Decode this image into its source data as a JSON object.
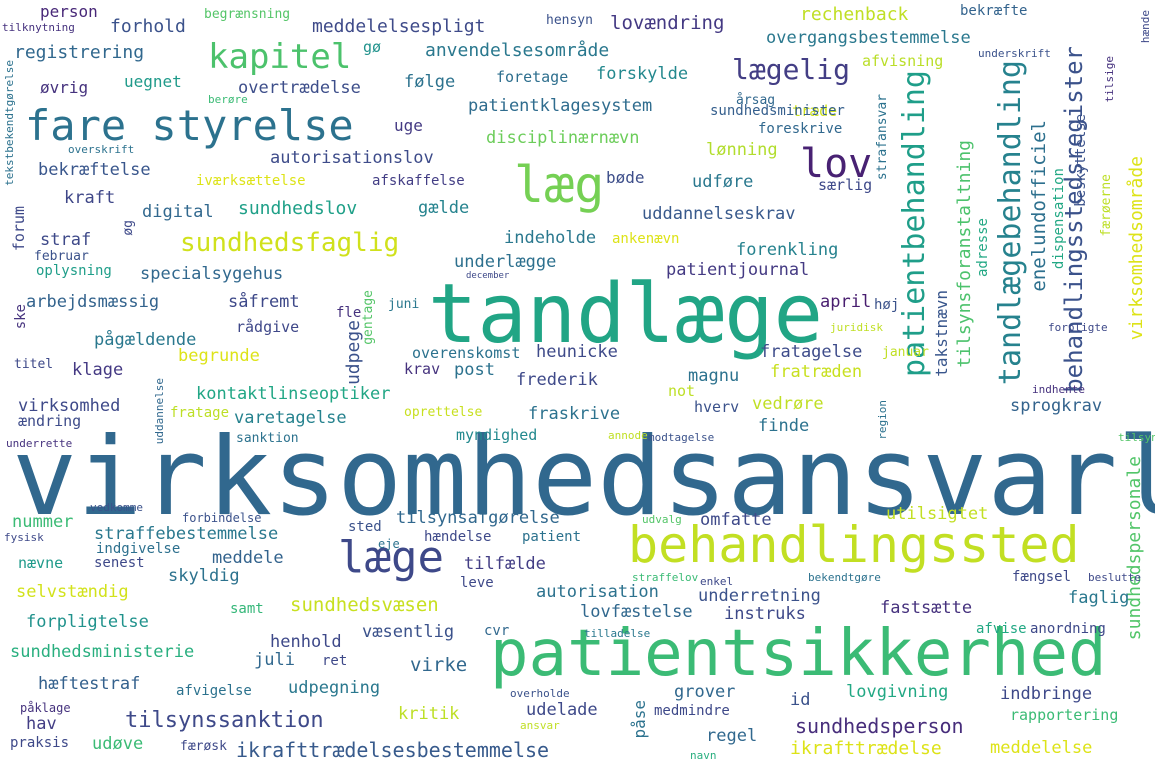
{
  "words": [
    {
      "text": "virksomhedsansvarlig",
      "color": "#31688e"
    },
    {
      "text": "tandlæge",
      "color": "#21a585"
    },
    {
      "text": "patientsikkerhed",
      "color": "#3bbb75"
    },
    {
      "text": "behandlingssted",
      "color": "#c2df23"
    },
    {
      "text": "fare styrelse",
      "color": "#2c728e"
    },
    {
      "text": "læg",
      "color": "#75d054"
    },
    {
      "text": "læge",
      "color": "#3e4989"
    },
    {
      "text": "lov",
      "color": "#482173"
    },
    {
      "text": "kapitel",
      "color": "#4cc26c"
    },
    {
      "text": "lægelig",
      "color": "#433e85"
    },
    {
      "text": "patientbehandling",
      "color": "#1f9e89"
    },
    {
      "text": "tandlægebehandling",
      "color": "#26828e"
    },
    {
      "text": "behandlingsstedsregister",
      "color": "#3b528b"
    },
    {
      "text": "sundhedsfaglig",
      "color": "#d0e11c"
    },
    {
      "text": "virksomhedsområde",
      "color": "#dde318"
    },
    {
      "text": "sundhedspersonale",
      "color": "#52c569"
    },
    {
      "text": "tilsynssanktion",
      "color": "#3e4989"
    },
    {
      "text": "ikrafttrædelsesbestemmelse",
      "color": "#375a8c"
    },
    {
      "text": "sundhedsperson",
      "color": "#472d7b"
    },
    {
      "text": "sundhedsvæsen",
      "color": "#c8e020"
    },
    {
      "text": "tilsynsforanstaltning",
      "color": "#4cc26c"
    },
    {
      "text": "enelundofficiel",
      "color": "#2d708e"
    },
    {
      "text": "takstnævn",
      "color": "#39568c"
    },
    {
      "text": "dispensation",
      "color": "#22a884"
    },
    {
      "text": "person",
      "color": "#482878"
    },
    {
      "text": "begrænsning",
      "color": "#54c568"
    },
    {
      "text": "meddelelsespligt",
      "color": "#3e4a89"
    },
    {
      "text": "rechenback",
      "color": "#c0df25"
    },
    {
      "text": "bekræfte",
      "color": "#33638d"
    },
    {
      "text": "forhold",
      "color": "#3b528b"
    },
    {
      "text": "lovændring",
      "color": "#443983"
    },
    {
      "text": "overgangsbestemmelse",
      "color": "#2a788e"
    },
    {
      "text": "registrering",
      "color": "#31688e"
    },
    {
      "text": "anvendelsesområde",
      "color": "#2a788e"
    },
    {
      "text": "gø",
      "color": "#20928c"
    },
    {
      "text": "uegnet",
      "color": "#1f9a8a"
    },
    {
      "text": "følge",
      "color": "#2c728e"
    },
    {
      "text": "forskylde",
      "color": "#23888e"
    },
    {
      "text": "øvrig",
      "color": "#46337e"
    },
    {
      "text": "overtrædelse",
      "color": "#3d4e8a"
    },
    {
      "text": "foretage",
      "color": "#2e6f8e"
    },
    {
      "text": "afvisning",
      "color": "#bade28"
    },
    {
      "text": "patientklagesystem",
      "color": "#2f6c8e"
    },
    {
      "text": "årsag",
      "color": "#31688e"
    },
    {
      "text": "træde",
      "color": "#cde11d"
    },
    {
      "text": "uge",
      "color": "#443a83"
    },
    {
      "text": "sundhedsminister",
      "color": "#355f8d"
    },
    {
      "text": "foreskrive",
      "color": "#31688e"
    },
    {
      "text": "disciplinærnævn",
      "color": "#6ccd5a"
    },
    {
      "text": "lønning",
      "color": "#b2dd2d"
    },
    {
      "text": "autorisationslov",
      "color": "#3e4c8a"
    },
    {
      "text": "bekræftelse",
      "color": "#39568c"
    },
    {
      "text": "iværksættelse",
      "color": "#dde318"
    },
    {
      "text": "afskaffelse",
      "color": "#433e85"
    },
    {
      "text": "bøde",
      "color": "#3d4e8a"
    },
    {
      "text": "udføre",
      "color": "#2a788e"
    },
    {
      "text": "særlig",
      "color": "#3e4989"
    },
    {
      "text": "kraft",
      "color": "#3f4788"
    },
    {
      "text": "digital",
      "color": "#31688e"
    },
    {
      "text": "sundhedslov",
      "color": "#1fa088"
    },
    {
      "text": "gælde",
      "color": "#25838e"
    },
    {
      "text": "uddannelseskrav",
      "color": "#38598c"
    },
    {
      "text": "indeholde",
      "color": "#2a788e"
    },
    {
      "text": "straf",
      "color": "#3e4989"
    },
    {
      "text": "forenkling",
      "color": "#26828e"
    },
    {
      "text": "underlægge",
      "color": "#2d708e"
    },
    {
      "text": "patientjournal",
      "color": "#443a83"
    },
    {
      "text": "specialsygehus",
      "color": "#31688e"
    },
    {
      "text": "oplysning",
      "color": "#1f9e89"
    },
    {
      "text": "februar",
      "color": "#3b528b"
    },
    {
      "text": "ankenævn",
      "color": "#dde318"
    },
    {
      "text": "arbejdsmæssig",
      "color": "#33638d"
    },
    {
      "text": "såfremt",
      "color": "#3e4989"
    },
    {
      "text": "april",
      "color": "#481d6f"
    },
    {
      "text": "høj",
      "color": "#3b528b"
    },
    {
      "text": "juni",
      "color": "#2a788e"
    },
    {
      "text": "fle",
      "color": "#46327e"
    },
    {
      "text": "udpege",
      "color": "#3b528b"
    },
    {
      "text": "pågældende",
      "color": "#2a788e"
    },
    {
      "text": "rådgive",
      "color": "#3f4889"
    },
    {
      "text": "begrunde",
      "color": "#dde318"
    },
    {
      "text": "heunicke",
      "color": "#3e4a89"
    },
    {
      "text": "magnu",
      "color": "#2c728e"
    },
    {
      "text": "fratagelse",
      "color": "#3e4c8a"
    },
    {
      "text": "overenskomst",
      "color": "#2c728e"
    },
    {
      "text": "klage",
      "color": "#443983"
    },
    {
      "text": "krav",
      "color": "#46337e"
    },
    {
      "text": "post",
      "color": "#2c728e"
    },
    {
      "text": "frederik",
      "color": "#3e4989"
    },
    {
      "text": "fratræden",
      "color": "#c8e020"
    },
    {
      "text": "kontaktlinseoptiker",
      "color": "#21a685"
    },
    {
      "text": "virksomhed",
      "color": "#3e4989"
    },
    {
      "text": "varetagelse",
      "color": "#26828e"
    },
    {
      "text": "fraskrive",
      "color": "#2c728e"
    },
    {
      "text": "hverv",
      "color": "#3b528b"
    },
    {
      "text": "vedrøre",
      "color": "#c0df25"
    },
    {
      "text": "sprogkrav",
      "color": "#33638d"
    },
    {
      "text": "ændring",
      "color": "#3e4c8a"
    },
    {
      "text": "fratage",
      "color": "#bddf26"
    },
    {
      "text": "oprettelse",
      "color": "#c8e020"
    },
    {
      "text": "finde",
      "color": "#2c728e"
    },
    {
      "text": "myndighed",
      "color": "#23898e"
    },
    {
      "text": "sanktion",
      "color": "#2c728e"
    },
    {
      "text": "underrette",
      "color": "#46327e"
    },
    {
      "text": "modtagelse",
      "color": "#3b528b"
    },
    {
      "text": "tilsyn",
      "color": "#54c568"
    },
    {
      "text": "nummer",
      "color": "#3bbb75"
    },
    {
      "text": "straffebestemmelse",
      "color": "#2a788e"
    },
    {
      "text": "tilsynsafgørelse",
      "color": "#31688e"
    },
    {
      "text": "omfatte",
      "color": "#3e4989"
    },
    {
      "text": "utilsigtet",
      "color": "#c2df23"
    },
    {
      "text": "forbindelse",
      "color": "#3b528b"
    },
    {
      "text": "sted",
      "color": "#3b528b"
    },
    {
      "text": "meddele",
      "color": "#33638d"
    },
    {
      "text": "hændelse",
      "color": "#3e4989"
    },
    {
      "text": "patient",
      "color": "#2c728e"
    },
    {
      "text": "indgivelse",
      "color": "#2d708e"
    },
    {
      "text": "nævne",
      "color": "#1f9a8a"
    },
    {
      "text": "senest",
      "color": "#3e4989"
    },
    {
      "text": "skyldig",
      "color": "#2c728e"
    },
    {
      "text": "tilfælde",
      "color": "#433e85"
    },
    {
      "text": "fængsel",
      "color": "#3e4989"
    },
    {
      "text": "selvstændig",
      "color": "#d2e21b"
    },
    {
      "text": "leve",
      "color": "#3e4989"
    },
    {
      "text": "autorisation",
      "color": "#2c728e"
    },
    {
      "text": "underretning",
      "color": "#3b528b"
    },
    {
      "text": "fastsætte",
      "color": "#46327e"
    },
    {
      "text": "faglig",
      "color": "#2a788e"
    },
    {
      "text": "samt",
      "color": "#35b779"
    },
    {
      "text": "lovfæstelse",
      "color": "#31688e"
    },
    {
      "text": "instruks",
      "color": "#3e4989"
    },
    {
      "text": "forpligtelse",
      "color": "#20928c"
    },
    {
      "text": "væsentlig",
      "color": "#3b528b"
    },
    {
      "text": "cvr",
      "color": "#31688e"
    },
    {
      "text": "afvise",
      "color": "#22a884"
    },
    {
      "text": "anordning",
      "color": "#3e4989"
    },
    {
      "text": "sundhedsministerie",
      "color": "#29af7f"
    },
    {
      "text": "juli",
      "color": "#31688e"
    },
    {
      "text": "ret",
      "color": "#3e4989"
    },
    {
      "text": "henhold",
      "color": "#3e4989"
    },
    {
      "text": "virke",
      "color": "#31688e"
    },
    {
      "text": "hæftestraf",
      "color": "#34618d"
    },
    {
      "text": "afvigelse",
      "color": "#2c728e"
    },
    {
      "text": "udpegning",
      "color": "#2a788e"
    },
    {
      "text": "grover",
      "color": "#31688e"
    },
    {
      "text": "lovgivning",
      "color": "#22a884"
    },
    {
      "text": "indbringe",
      "color": "#3e4989"
    },
    {
      "text": "id",
      "color": "#3b528b"
    },
    {
      "text": "kritik",
      "color": "#bddf26"
    },
    {
      "text": "udelade",
      "color": "#3e4989"
    },
    {
      "text": "hav",
      "color": "#433e85"
    },
    {
      "text": "regel",
      "color": "#31688e"
    },
    {
      "text": "rapportering",
      "color": "#3bbb75"
    },
    {
      "text": "medmindre",
      "color": "#3e4989"
    },
    {
      "text": "praksis",
      "color": "#3e4989"
    },
    {
      "text": "udøve",
      "color": "#3bbb75"
    },
    {
      "text": "færøsk",
      "color": "#3e4989"
    },
    {
      "text": "ikrafttrædelse",
      "color": "#dde318"
    },
    {
      "text": "meddelelse",
      "color": "#dde318"
    },
    {
      "text": "påse",
      "color": "#2c728e"
    },
    {
      "text": "navn",
      "color": "#29af7f"
    },
    {
      "text": "ansvar",
      "color": "#c0df25"
    },
    {
      "text": "påklage",
      "color": "#46337e"
    },
    {
      "text": "overholde",
      "color": "#3b528b"
    },
    {
      "text": "fysisk",
      "color": "#3e4989"
    },
    {
      "text": "eje",
      "color": "#2c728e"
    },
    {
      "text": "udvalg",
      "color": "#54c568"
    },
    {
      "text": "straffelov",
      "color": "#3bbb75"
    },
    {
      "text": "enkel",
      "color": "#3e4989"
    },
    {
      "text": "bekendtgøre",
      "color": "#2c728e"
    },
    {
      "text": "beslutte",
      "color": "#3e4989"
    },
    {
      "text": "tilladelse",
      "color": "#2a788e"
    },
    {
      "text": "vedkomme",
      "color": "#3b528b"
    },
    {
      "text": "annode",
      "color": "#c0df25"
    },
    {
      "text": "region",
      "color": "#2c728e"
    },
    {
      "text": "uddannelse",
      "color": "#31688e"
    },
    {
      "text": "indhente",
      "color": "#46327e"
    },
    {
      "text": "forpligte",
      "color": "#3e4989"
    },
    {
      "text": "januar",
      "color": "#c0df25"
    },
    {
      "text": "juridisk",
      "color": "#c0df25"
    },
    {
      "text": "gentage",
      "color": "#54c568"
    },
    {
      "text": "ske",
      "color": "#46337e"
    },
    {
      "text": "titel",
      "color": "#3e4989"
    },
    {
      "text": "december",
      "color": "#3e4989"
    },
    {
      "text": "forum",
      "color": "#3e4989"
    },
    {
      "text": "øg",
      "color": "#3e4989"
    },
    {
      "text": "adresse",
      "color": "#22a884"
    },
    {
      "text": "færøerne",
      "color": "#bddf26"
    },
    {
      "text": "beskyttelse",
      "color": "#3b528b"
    },
    {
      "text": "underskrift",
      "color": "#3b528b"
    },
    {
      "text": "hensyn",
      "color": "#3b528b"
    },
    {
      "text": "tilknytning",
      "color": "#46327e"
    },
    {
      "text": "berøre",
      "color": "#3bbb75"
    },
    {
      "text": "tilsige",
      "color": "#46327e"
    },
    {
      "text": "overskrift",
      "color": "#2c728e"
    },
    {
      "text": "not",
      "color": "#bddf26"
    },
    {
      "text": "strafansvar",
      "color": "#2c728e"
    },
    {
      "text": "tekstbekendtgørelse",
      "color": "#2c728e"
    },
    {
      "text": "hænde",
      "color": "#3e4989"
    }
  ]
}
